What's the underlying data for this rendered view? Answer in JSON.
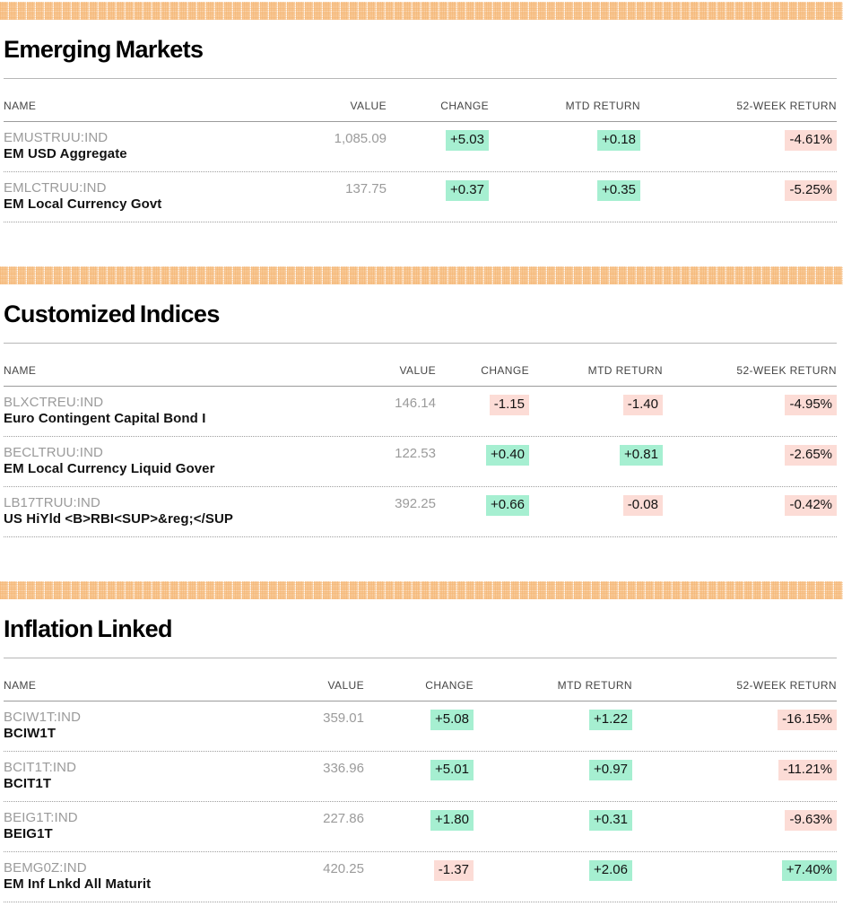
{
  "colors": {
    "positive_bg": "#a6efd1",
    "negative_bg": "#fcdcd6",
    "ribbon_orange": "#f6bb7c"
  },
  "sections": [
    {
      "title": "Emerging Markets",
      "columns": [
        "NAME",
        "VALUE",
        "CHANGE",
        "MTD RETURN",
        "52-WEEK RETURN"
      ],
      "rows": [
        {
          "ticker": "EMUSTRUU:IND",
          "name": "EM USD Aggregate",
          "value": "1,085.09",
          "change": "+5.03",
          "change_dir": "up",
          "mtd": "+0.18",
          "mtd_dir": "up",
          "week52": "-4.61%",
          "week52_dir": "down"
        },
        {
          "ticker": "EMLCTRUU:IND",
          "name": "EM Local Currency Govt",
          "value": "137.75",
          "change": "+0.37",
          "change_dir": "up",
          "mtd": "+0.35",
          "mtd_dir": "up",
          "week52": "-5.25%",
          "week52_dir": "down"
        }
      ]
    },
    {
      "title": "Customized Indices",
      "columns": [
        "NAME",
        "VALUE",
        "CHANGE",
        "MTD RETURN",
        "52-WEEK RETURN"
      ],
      "rows": [
        {
          "ticker": "BLXCTREU:IND",
          "name": "Euro Contingent Capital Bond I",
          "value": "146.14",
          "change": "-1.15",
          "change_dir": "down",
          "mtd": "-1.40",
          "mtd_dir": "down",
          "week52": "-4.95%",
          "week52_dir": "down"
        },
        {
          "ticker": "BECLTRUU:IND",
          "name": "EM Local Currency Liquid Gover",
          "value": "122.53",
          "change": "+0.40",
          "change_dir": "up",
          "mtd": "+0.81",
          "mtd_dir": "up",
          "week52": "-2.65%",
          "week52_dir": "down"
        },
        {
          "ticker": "LB17TRUU:IND",
          "name": "US HiYld <B>RBI<SUP>&reg;</SUP",
          "value": "392.25",
          "change": "+0.66",
          "change_dir": "up",
          "mtd": "-0.08",
          "mtd_dir": "down",
          "week52": "-0.42%",
          "week52_dir": "down"
        }
      ]
    },
    {
      "title": "Inflation Linked",
      "columns": [
        "NAME",
        "VALUE",
        "CHANGE",
        "MTD RETURN",
        "52-WEEK RETURN"
      ],
      "rows": [
        {
          "ticker": "BCIW1T:IND",
          "name": "BCIW1T",
          "value": "359.01",
          "change": "+5.08",
          "change_dir": "up",
          "mtd": "+1.22",
          "mtd_dir": "up",
          "week52": "-16.15%",
          "week52_dir": "down"
        },
        {
          "ticker": "BCIT1T:IND",
          "name": "BCIT1T",
          "value": "336.96",
          "change": "+5.01",
          "change_dir": "up",
          "mtd": "+0.97",
          "mtd_dir": "up",
          "week52": "-11.21%",
          "week52_dir": "down"
        },
        {
          "ticker": "BEIG1T:IND",
          "name": "BEIG1T",
          "value": "227.86",
          "change": "+1.80",
          "change_dir": "up",
          "mtd": "+0.31",
          "mtd_dir": "up",
          "week52": "-9.63%",
          "week52_dir": "down"
        },
        {
          "ticker": "BEMG0Z:IND",
          "name": "EM Inf Lnkd All Maturit",
          "value": "420.25",
          "change": "-1.37",
          "change_dir": "down",
          "mtd": "+2.06",
          "mtd_dir": "up",
          "week52": "+7.40%",
          "week52_dir": "up"
        }
      ]
    }
  ]
}
